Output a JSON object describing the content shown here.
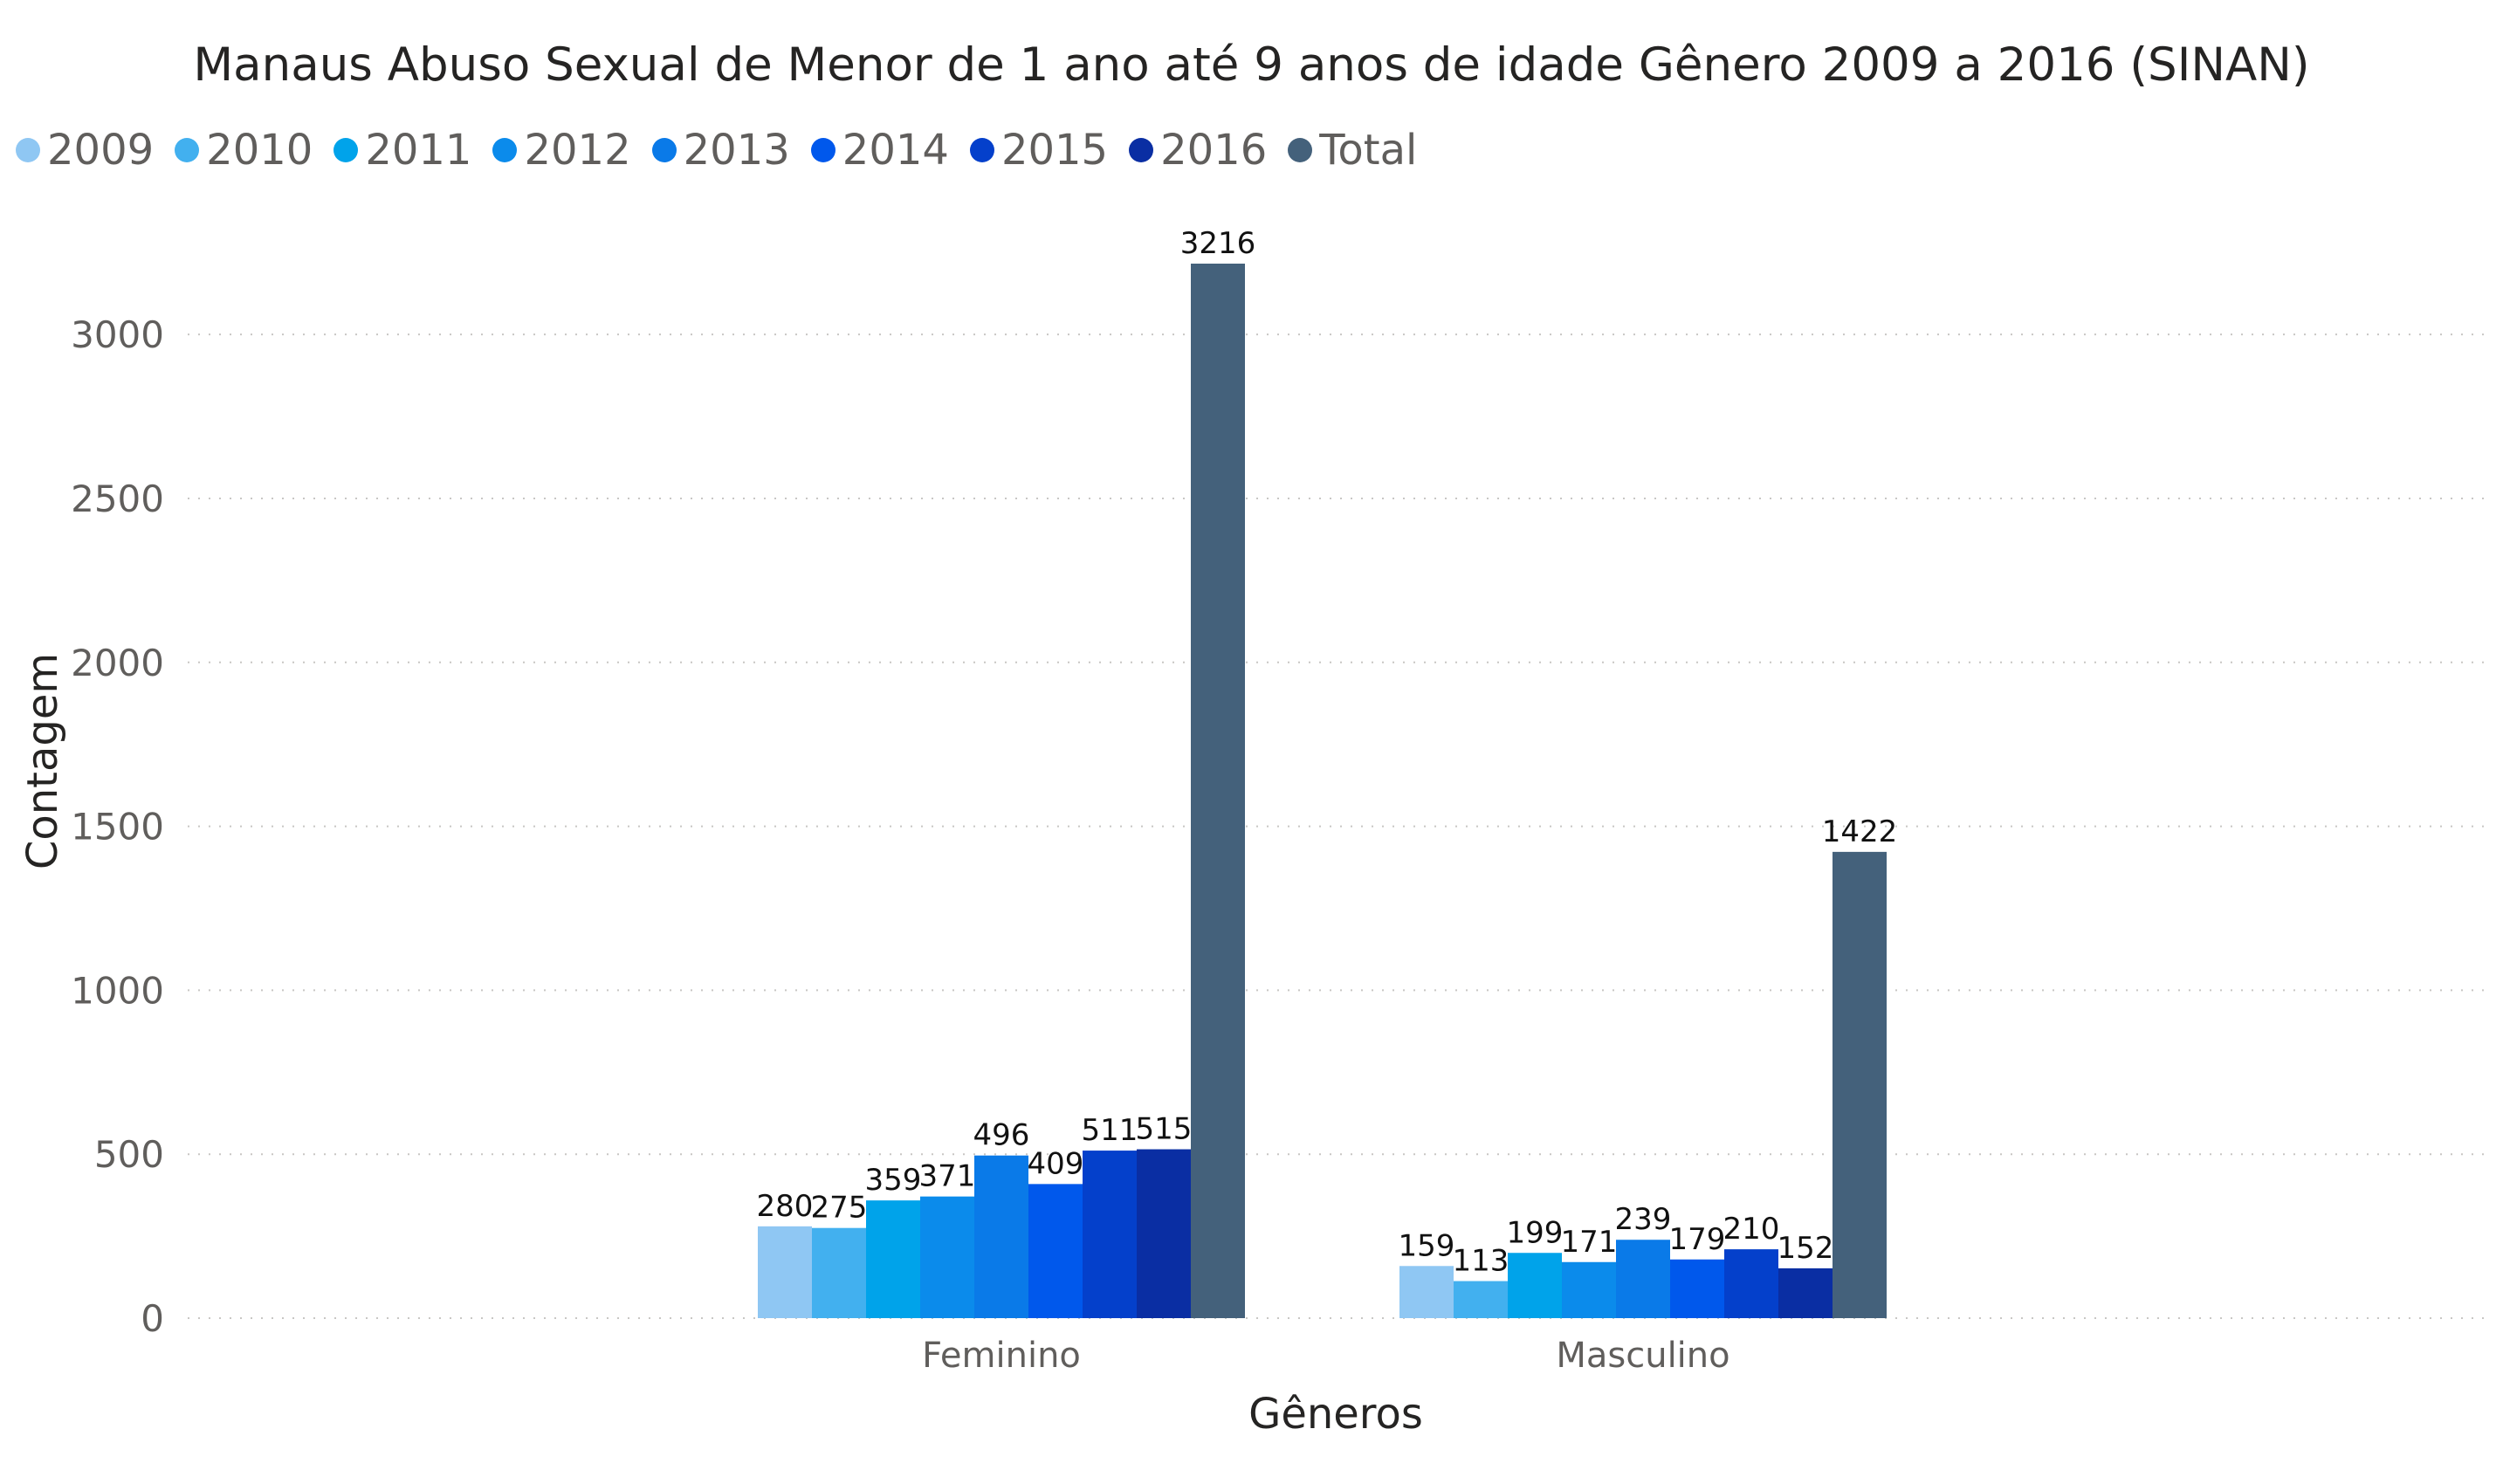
{
  "chart_data": {
    "type": "bar",
    "title": "Manaus Abuso Sexual de Menor de 1 ano até 9 anos de idade Gênero 2009 a 2016 (SINAN)",
    "xlabel": "Gêneros",
    "ylabel": "Contagem",
    "categories": [
      "Feminino",
      "Masculino"
    ],
    "yticks": [
      0,
      500,
      1000,
      1500,
      2000,
      2500,
      3000
    ],
    "ylim": [
      0,
      3216
    ],
    "grid": true,
    "legend_position": "top-left",
    "series": [
      {
        "name": "2009",
        "color": "#8fc7f3",
        "values": [
          280,
          159
        ]
      },
      {
        "name": "2010",
        "color": "#42b0ef",
        "values": [
          275,
          113
        ]
      },
      {
        "name": "2011",
        "color": "#00a3ea",
        "values": [
          359,
          199
        ]
      },
      {
        "name": "2012",
        "color": "#0b8beb",
        "values": [
          371,
          171
        ]
      },
      {
        "name": "2013",
        "color": "#0a7ae8",
        "values": [
          496,
          239
        ]
      },
      {
        "name": "2014",
        "color": "#0058ec",
        "values": [
          409,
          179
        ]
      },
      {
        "name": "2015",
        "color": "#0440cb",
        "values": [
          511,
          210
        ]
      },
      {
        "name": "2016",
        "color": "#0a2ea3",
        "values": [
          515,
          152
        ]
      },
      {
        "name": "Total",
        "color": "#44617b",
        "values": [
          3216,
          1422
        ]
      }
    ]
  }
}
